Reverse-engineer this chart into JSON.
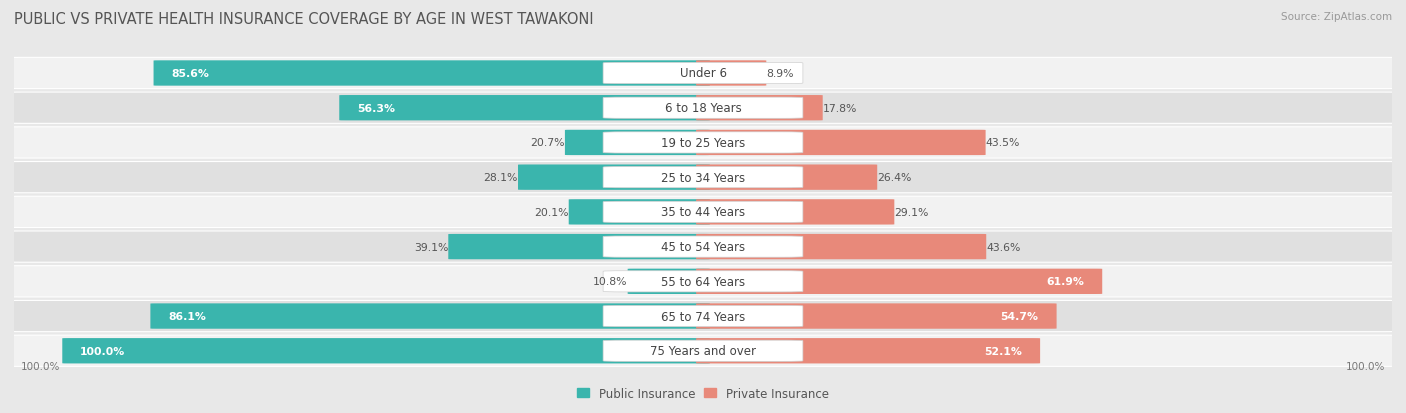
{
  "title": "PUBLIC VS PRIVATE HEALTH INSURANCE COVERAGE BY AGE IN WEST TAWAKONI",
  "source": "Source: ZipAtlas.com",
  "categories": [
    "Under 6",
    "6 to 18 Years",
    "19 to 25 Years",
    "25 to 34 Years",
    "35 to 44 Years",
    "45 to 54 Years",
    "55 to 64 Years",
    "65 to 74 Years",
    "75 Years and over"
  ],
  "public_values": [
    85.6,
    56.3,
    20.7,
    28.1,
    20.1,
    39.1,
    10.8,
    86.1,
    100.0
  ],
  "private_values": [
    8.9,
    17.8,
    43.5,
    26.4,
    29.1,
    43.6,
    61.9,
    54.7,
    52.1
  ],
  "public_color": "#3ab5ad",
  "private_color": "#e8897a",
  "public_label": "Public Insurance",
  "private_label": "Private Insurance",
  "bg_color": "#e8e8e8",
  "row_bg_light": "#f2f2f2",
  "row_bg_dark": "#e0e0e0",
  "bar_max": 100.0,
  "title_fontsize": 10.5,
  "label_fontsize": 8.5,
  "value_fontsize": 7.8,
  "source_fontsize": 7.5,
  "axis_label_fontsize": 7.5
}
